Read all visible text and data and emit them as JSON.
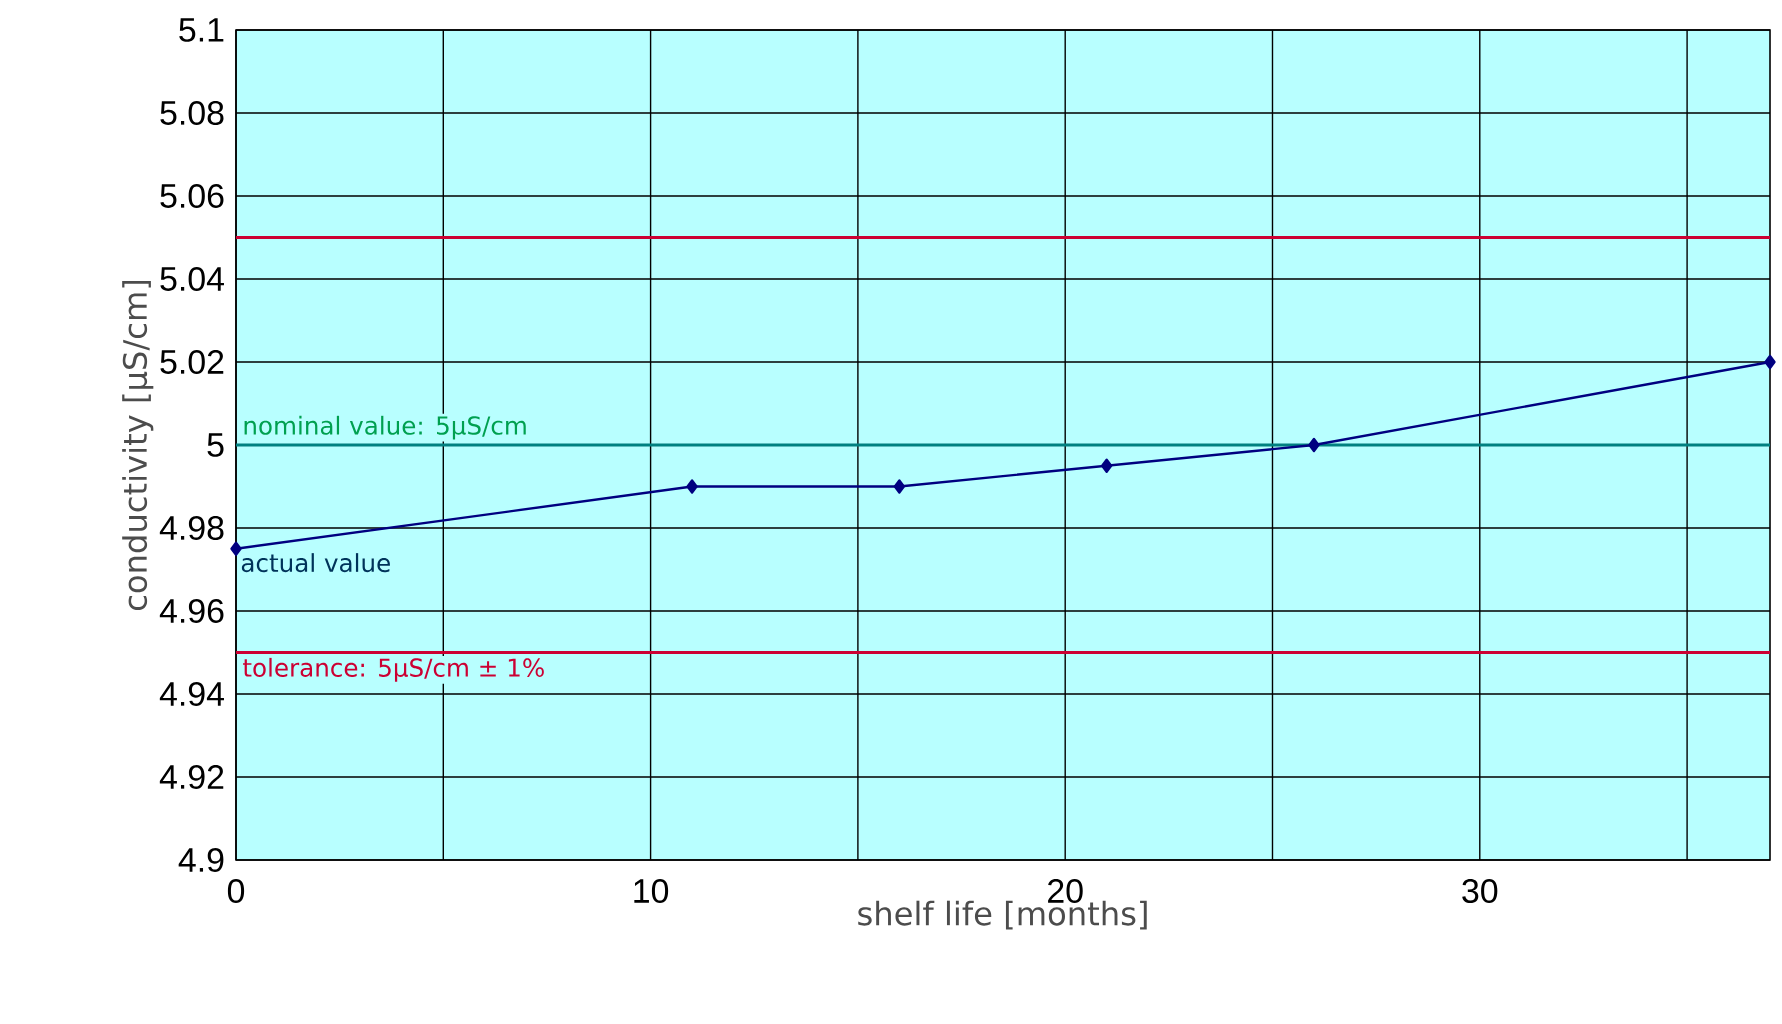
{
  "chart_data": {
    "type": "line",
    "xlabel": "shelf life [months]",
    "ylabel": "conductivity [µS/cm]",
    "x": [
      0,
      11,
      16,
      21,
      26,
      37
    ],
    "series": [
      {
        "name": "actual value",
        "color": "#000080",
        "values": [
          4.975,
          4.99,
          4.99,
          4.995,
          5.0,
          5.02
        ]
      }
    ],
    "xlim": [
      0,
      37
    ],
    "xticks": [
      0,
      {
        "value": 5,
        "label": null
      },
      10,
      {
        "value": 15,
        "label": null
      },
      20,
      {
        "value": 25,
        "label": null
      },
      30,
      {
        "value": 35,
        "label": null
      }
    ],
    "ylim": [
      4.9,
      5.1
    ],
    "yticks": [
      4.9,
      4.92,
      4.94,
      4.96,
      4.98,
      5,
      5.02,
      5.04,
      5.06,
      5.08,
      5.1
    ],
    "ref_lines": [
      {
        "axis": "y",
        "value": 5.05,
        "label": null,
        "color": "#cc0033"
      },
      {
        "axis": "y",
        "value": 5.0,
        "label": "nominal value: 5µS/cm",
        "color": "#008080"
      },
      {
        "axis": "y",
        "value": 4.95,
        "label": "tolerance: 5µS/cm ± 1%",
        "color": "#cc0033"
      }
    ],
    "grid": true,
    "marker": "diamond",
    "line_style": "solid"
  }
}
